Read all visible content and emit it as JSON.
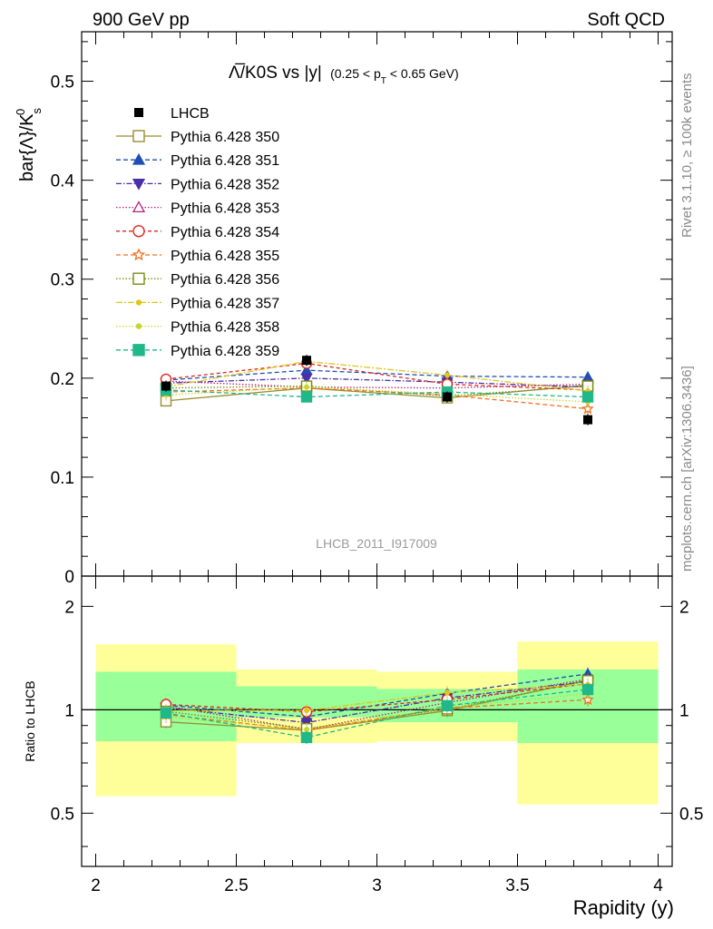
{
  "header": {
    "left": "900 GeV pp",
    "right": "Soft QCD"
  },
  "side_labels": {
    "rivet": "Rivet 3.1.10, ≥ 100k events",
    "mcplots": "mcplots.cern.ch [arXiv:1306.3436]"
  },
  "title": {
    "main": "Λ̅/K0S vs |y|",
    "cut_open": "(0.25 < p",
    "cut_sub": "T",
    "cut_close": " < 0.65 GeV)"
  },
  "watermark": "LHCB_2011_I917009",
  "chart_data": {
    "type": "scatter",
    "xlabel": "Rapidity (y)",
    "ylabel": "bar{Λ}/K",
    "ylabel_sup": "0",
    "ylabel_sub": "s",
    "ratio_ylabel": "Ratio to LHCB",
    "xlim": [
      1.95,
      4.05
    ],
    "ylim": [
      0,
      0.55
    ],
    "ratio_ylim": [
      0.35,
      2.45
    ],
    "x_ticks": [
      2,
      2.5,
      3,
      3.5,
      4
    ],
    "x_tick_labels": [
      "2",
      "2.5",
      "3",
      "3.5",
      "4"
    ],
    "y_ticks": [
      0,
      0.1,
      0.2,
      0.3,
      0.4,
      0.5
    ],
    "y_tick_labels": [
      "0",
      "0.1",
      "0.2",
      "0.3",
      "0.4",
      "0.5"
    ],
    "ratio_ticks": [
      0.5,
      1,
      2
    ],
    "ratio_tick_labels": [
      "0.5",
      "1",
      "2"
    ],
    "x": [
      2.25,
      2.75,
      3.25,
      3.75
    ],
    "bins": [
      [
        2.0,
        2.5
      ],
      [
        2.5,
        3.0
      ],
      [
        3.0,
        3.5
      ],
      [
        3.5,
        4.0
      ]
    ],
    "data": {
      "name": "LHCB",
      "values": [
        0.192,
        0.218,
        0.181,
        0.158
      ],
      "band_inner": [
        [
          0.81,
          1.29
        ],
        [
          0.95,
          1.17
        ],
        [
          0.92,
          1.15
        ],
        [
          0.8,
          1.31
        ]
      ],
      "band_outer": [
        [
          0.56,
          1.55
        ],
        [
          0.8,
          1.31
        ],
        [
          0.81,
          1.29
        ],
        [
          0.53,
          1.58
        ]
      ]
    },
    "series": [
      {
        "name": "Pythia 6.428 350",
        "color": "#9a8d2f",
        "dash": "",
        "marker": "open-square",
        "values": [
          0.177,
          0.19,
          0.18,
          0.193
        ]
      },
      {
        "name": "Pythia 6.428 351",
        "color": "#1f4fb5",
        "dash": "5,3",
        "marker": "filled-triangle-up",
        "values": [
          0.198,
          0.208,
          0.202,
          0.201
        ]
      },
      {
        "name": "Pythia 6.428 352",
        "color": "#4b2fa8",
        "dash": "6,2,1.5,2",
        "marker": "filled-triangle-down",
        "values": [
          0.195,
          0.2,
          0.196,
          0.191
        ]
      },
      {
        "name": "Pythia 6.428 353",
        "color": "#b0257a",
        "dash": "1.5,2",
        "marker": "open-triangle-up",
        "values": [
          0.197,
          0.191,
          0.19,
          0.194
        ]
      },
      {
        "name": "Pythia 6.428 354",
        "color": "#e0261d",
        "dash": "4,3",
        "marker": "open-circle",
        "values": [
          0.199,
          0.215,
          0.194,
          0.188
        ]
      },
      {
        "name": "Pythia 6.428 355",
        "color": "#f07020",
        "dash": "5,3",
        "marker": "open-star",
        "values": [
          0.186,
          0.19,
          0.183,
          0.169
        ]
      },
      {
        "name": "Pythia 6.428 356",
        "color": "#7a8a10",
        "dash": "1.5,2",
        "marker": "open-square",
        "values": [
          0.19,
          0.192,
          0.182,
          0.192
        ]
      },
      {
        "name": "Pythia 6.428 357",
        "color": "#e0c51a",
        "dash": "7,2,2,2",
        "marker": "filled-dot",
        "values": [
          0.191,
          0.217,
          0.203,
          0.187
        ]
      },
      {
        "name": "Pythia 6.428 358",
        "color": "#c8d62a",
        "dash": "1.5,2",
        "marker": "filled-dot",
        "values": [
          0.183,
          0.191,
          0.184,
          0.176
        ]
      },
      {
        "name": "Pythia 6.428 359",
        "color": "#20b888",
        "dash": "5,3",
        "marker": "filled-square",
        "values": [
          0.188,
          0.181,
          0.186,
          0.181
        ]
      }
    ]
  }
}
